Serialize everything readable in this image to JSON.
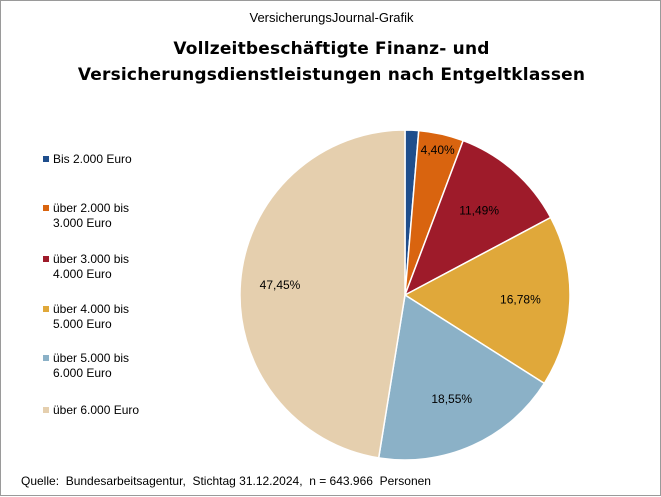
{
  "header": {
    "kicker": "VersicherungsJournal-Grafik"
  },
  "chart_data": {
    "type": "pie",
    "title_lines": [
      "Vollzeitbeschäftigte  Finanz-  und",
      "Versicherungsdienstleistungen  nach  Entgeltklassen"
    ],
    "legend_position": "left",
    "slices": [
      {
        "name": "Bis 2.000 Euro",
        "value": 1.33,
        "label": "",
        "color": "#1f4e8c"
      },
      {
        "name": "über 2.000 bis\n3.000 Euro",
        "value": 4.4,
        "label": "4,40%",
        "color": "#d9640f"
      },
      {
        "name": "über 3.000 bis\n4.000 Euro",
        "value": 11.49,
        "label": "11,49%",
        "color": "#9e1b2a"
      },
      {
        "name": "über 4.000 bis\n5.000 Euro",
        "value": 16.78,
        "label": "16,78%",
        "color": "#e0a83a"
      },
      {
        "name": "über 5.000 bis\n6.000 Euro",
        "value": 18.55,
        "label": "18,55%",
        "color": "#8bb1c7"
      },
      {
        "name": "über 6.000 Euro",
        "value": 47.45,
        "label": "47,45%",
        "color": "#e5cfae"
      }
    ]
  },
  "footer": {
    "source": "Quelle:  Bundesarbeitsagentur,  Stichtag 31.12.2024,  n = 643.966  Personen"
  }
}
